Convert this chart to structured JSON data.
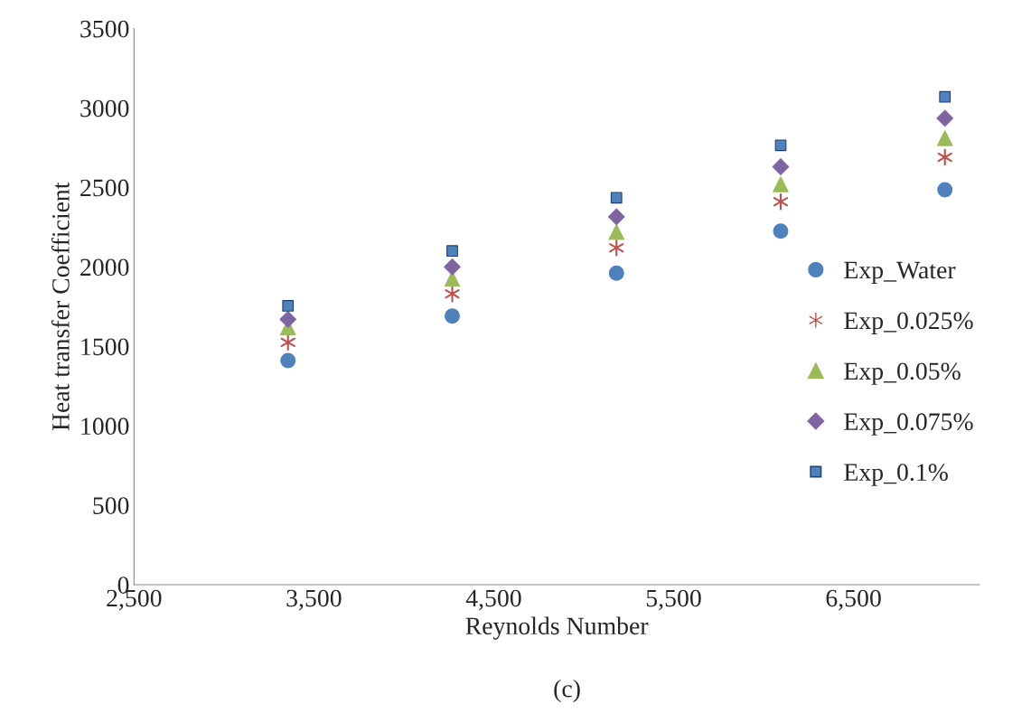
{
  "chart_data": {
    "type": "scatter",
    "xlabel": "Reynolds Number",
    "ylabel": "Heat transfer Coefficient",
    "annotations": [
      "(c)"
    ],
    "x": [
      3356,
      4269,
      5182,
      6095,
      7008
    ],
    "series": [
      {
        "name": "Exp_Water",
        "color": "#4f81bd",
        "marker": "circle",
        "values": [
          1410,
          1690,
          1960,
          2225,
          2485
        ]
      },
      {
        "name": "Exp_0.025%",
        "color": "#c0504d",
        "marker": "cross",
        "values": [
          1525,
          1830,
          2120,
          2410,
          2690
        ]
      },
      {
        "name": "Exp_0.05%",
        "color": "#9bbb59",
        "marker": "triangle",
        "values": [
          1620,
          1925,
          2220,
          2520,
          2810
        ]
      },
      {
        "name": "Exp_0.075%",
        "color": "#8064a2",
        "marker": "diamond",
        "values": [
          1670,
          2000,
          2315,
          2630,
          2935
        ]
      },
      {
        "name": "Exp_0.1%",
        "color": "#4f81bd",
        "marker": "square",
        "values": [
          1755,
          2100,
          2435,
          2765,
          3070
        ]
      }
    ],
    "xlim": [
      2500,
      7200
    ],
    "xticks": [
      {
        "value": 2500,
        "label": "2,500"
      },
      {
        "value": 3500,
        "label": "3,500"
      },
      {
        "value": 4500,
        "label": "4,500"
      },
      {
        "value": 5500,
        "label": "5,500"
      },
      {
        "value": 6500,
        "label": "6,500"
      }
    ],
    "ylim": [
      0,
      3500
    ],
    "yticks": [
      0,
      500,
      1000,
      1500,
      2000,
      2500,
      3000,
      3500
    ],
    "grid": false,
    "legend": "right"
  }
}
